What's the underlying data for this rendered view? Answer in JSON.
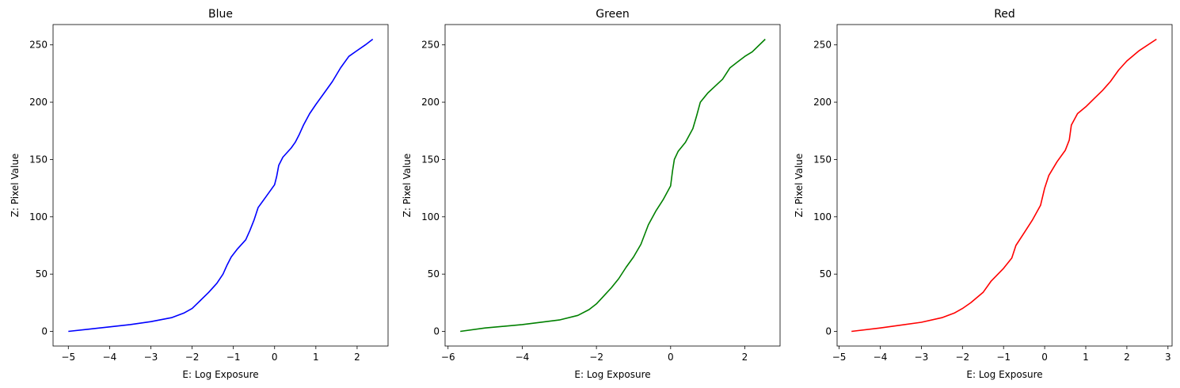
{
  "chart_data": [
    {
      "type": "line",
      "title": "Blue",
      "xlabel": "E: Log Exposure",
      "ylabel": "Z: Pixel Value",
      "xlim": [
        -5.37,
        2.75
      ],
      "ylim": [
        -12.75,
        267.75
      ],
      "xticks": [
        -5,
        -4,
        -3,
        -2,
        -1,
        0,
        1,
        2
      ],
      "yticks": [
        0,
        50,
        100,
        150,
        200,
        250
      ],
      "series": [
        {
          "color": "#0000ff",
          "x": [
            -5.0,
            -4.5,
            -4.0,
            -3.5,
            -3.0,
            -2.5,
            -2.2,
            -2.0,
            -1.8,
            -1.6,
            -1.4,
            -1.25,
            -1.15,
            -1.05,
            -0.9,
            -0.7,
            -0.6,
            -0.5,
            -0.4,
            -0.2,
            0.0,
            0.05,
            0.1,
            0.2,
            0.4,
            0.5,
            0.6,
            0.7,
            0.85,
            1.0,
            1.2,
            1.4,
            1.6,
            1.8,
            2.0,
            2.2,
            2.38
          ],
          "y": [
            0,
            2,
            4,
            6,
            8.5,
            12,
            16,
            20,
            27,
            34,
            42,
            50,
            58,
            65,
            72,
            80,
            88,
            97,
            108,
            118,
            128,
            135,
            145,
            152,
            160,
            165,
            172,
            180,
            190,
            198,
            208,
            218,
            230,
            240,
            245,
            250,
            255
          ]
        }
      ]
    },
    {
      "type": "line",
      "title": "Green",
      "xlabel": "E: Log Exposure",
      "ylabel": "Z: Pixel Value",
      "xlim": [
        -6.08,
        2.95
      ],
      "ylim": [
        -12.75,
        267.75
      ],
      "xticks": [
        -6,
        -4,
        -2,
        0,
        2
      ],
      "yticks": [
        0,
        50,
        100,
        150,
        200,
        250
      ],
      "series": [
        {
          "color": "#008000",
          "x": [
            -5.67,
            -5.0,
            -4.0,
            -3.0,
            -2.5,
            -2.2,
            -2.0,
            -1.8,
            -1.6,
            -1.4,
            -1.2,
            -1.0,
            -0.8,
            -0.6,
            -0.4,
            -0.2,
            0.0,
            0.05,
            0.1,
            0.2,
            0.4,
            0.6,
            0.7,
            0.8,
            1.0,
            1.2,
            1.4,
            1.6,
            1.8,
            2.0,
            2.2,
            2.55
          ],
          "y": [
            0,
            3,
            6,
            10,
            14,
            19,
            24,
            31,
            38,
            46,
            56,
            65,
            76,
            93,
            105,
            115,
            127,
            140,
            150,
            157,
            165,
            177,
            188,
            200,
            208,
            214,
            220,
            230,
            235,
            240,
            244,
            255
          ]
        }
      ]
    },
    {
      "type": "line",
      "title": "Red",
      "xlabel": "E: Log Exposure",
      "ylabel": "Z: Pixel Value",
      "xlim": [
        -5.05,
        3.1
      ],
      "ylim": [
        -12.75,
        267.75
      ],
      "xticks": [
        -5,
        -4,
        -3,
        -2,
        -1,
        0,
        1,
        2,
        3
      ],
      "yticks": [
        0,
        50,
        100,
        150,
        200,
        250
      ],
      "series": [
        {
          "color": "#ff0000",
          "x": [
            -4.7,
            -4.0,
            -3.0,
            -2.5,
            -2.2,
            -2.0,
            -1.8,
            -1.5,
            -1.3,
            -1.0,
            -0.8,
            -0.7,
            -0.5,
            -0.3,
            -0.1,
            0.0,
            0.1,
            0.3,
            0.5,
            0.6,
            0.65,
            0.8,
            1.0,
            1.2,
            1.4,
            1.6,
            1.8,
            2.0,
            2.3,
            2.72
          ],
          "y": [
            0,
            3,
            8,
            12,
            16,
            20,
            25,
            34,
            44,
            55,
            64,
            75,
            86,
            97,
            110,
            125,
            136,
            148,
            158,
            167,
            180,
            190,
            196,
            203,
            210,
            218,
            228,
            236,
            245,
            255
          ]
        }
      ]
    }
  ]
}
